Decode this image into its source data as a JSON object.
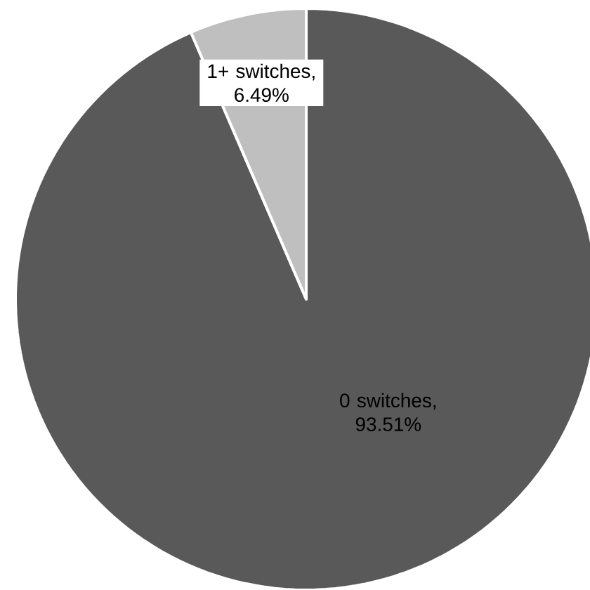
{
  "chart_data": {
    "type": "pie",
    "categories": [
      null,
      null
    ],
    "values": [
      93.51,
      6.49
    ],
    "value_labels": [
      "0 switches, 93.51%",
      "1+ switches, 6.49%"
    ],
    "colors": [
      "#595959",
      "#bfbfbf"
    ]
  }
}
